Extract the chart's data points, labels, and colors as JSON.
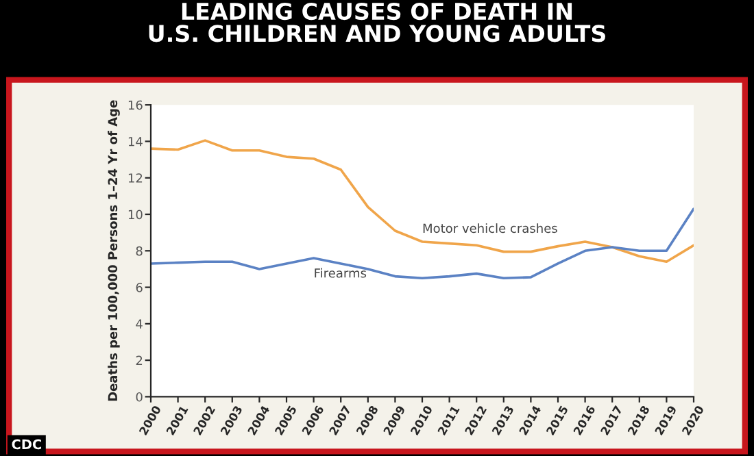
{
  "chart_data": {
    "type": "line",
    "title": "LEADING CAUSES OF DEATH IN\nU.S. CHILDREN AND YOUNG ADULTS",
    "ylabel": "Deaths per 100,000 Persons 1–24 Yr of Age",
    "x": [
      2000,
      2001,
      2002,
      2003,
      2004,
      2005,
      2006,
      2007,
      2008,
      2009,
      2010,
      2011,
      2012,
      2013,
      2014,
      2015,
      2016,
      2017,
      2018,
      2019,
      2020
    ],
    "series": [
      {
        "name": "Motor vehicle crashes",
        "color": "#f0a54a",
        "values": [
          13.6,
          13.55,
          14.05,
          13.5,
          13.5,
          13.15,
          13.05,
          12.45,
          10.4,
          9.1,
          8.5,
          8.4,
          8.3,
          7.95,
          7.95,
          8.25,
          8.5,
          8.2,
          7.7,
          7.4,
          8.3
        ]
      },
      {
        "name": "Firearms",
        "color": "#5b82c4",
        "values": [
          7.3,
          7.35,
          7.4,
          7.4,
          7.0,
          7.3,
          7.6,
          7.3,
          7.0,
          6.6,
          6.5,
          6.6,
          6.75,
          6.5,
          6.55,
          7.3,
          8.0,
          8.2,
          8.0,
          8.0,
          10.3
        ]
      }
    ],
    "xlim": [
      2000,
      2020
    ],
    "xticks": [
      2000,
      2001,
      2002,
      2003,
      2004,
      2005,
      2006,
      2007,
      2008,
      2009,
      2010,
      2011,
      2012,
      2013,
      2014,
      2015,
      2016,
      2017,
      2018,
      2019,
      2020
    ],
    "ylim": [
      0,
      16
    ],
    "yticks": [
      0,
      2,
      4,
      6,
      8,
      10,
      12,
      14,
      16
    ],
    "grid": false,
    "legend": false,
    "marker": "none",
    "line_style": "solid",
    "annotations": [
      "CDC"
    ]
  }
}
